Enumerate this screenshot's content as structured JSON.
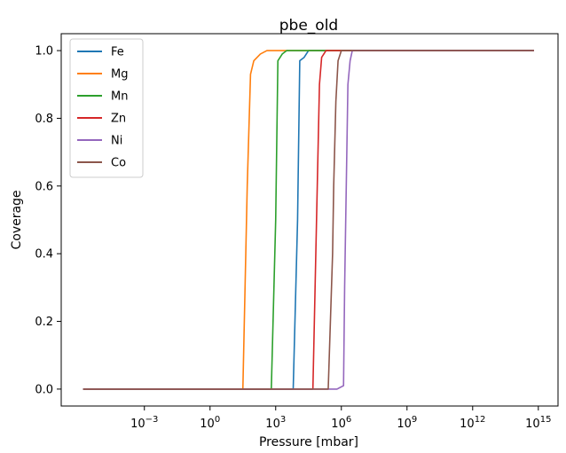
{
  "chart_data": {
    "type": "line",
    "title": "pbe_old",
    "xlabel": "Pressure [mbar]",
    "ylabel": "Coverage",
    "xscale": "log",
    "xlim_log10": [
      -6.8,
      15.9
    ],
    "ylim": [
      -0.05,
      1.05
    ],
    "x_ticks": [
      {
        "exp": -3,
        "base": "10",
        "sup": "−3"
      },
      {
        "exp": 0,
        "base": "10",
        "sup": "0"
      },
      {
        "exp": 3,
        "base": "10",
        "sup": "3"
      },
      {
        "exp": 6,
        "base": "10",
        "sup": "6"
      },
      {
        "exp": 9,
        "base": "10",
        "sup": "9"
      },
      {
        "exp": 12,
        "base": "10",
        "sup": "12"
      },
      {
        "exp": 15,
        "base": "10",
        "sup": "15"
      }
    ],
    "y_ticks": [
      {
        "value": 0.0,
        "label": "0.0"
      },
      {
        "value": 0.2,
        "label": "0.2"
      },
      {
        "value": 0.4,
        "label": "0.4"
      },
      {
        "value": 0.6,
        "label": "0.6"
      },
      {
        "value": 0.8,
        "label": "0.8"
      },
      {
        "value": 1.0,
        "label": "1.0"
      }
    ],
    "grid": false,
    "legend_position": "top-left",
    "series": [
      {
        "name": "Fe",
        "color": "#1f77b4",
        "points": [
          [
            -5.8,
            0
          ],
          [
            3.8,
            0
          ],
          [
            4.0,
            0.5
          ],
          [
            4.1,
            0.97
          ],
          [
            4.3,
            0.98
          ],
          [
            4.5,
            1.0
          ],
          [
            14.8,
            1.0
          ]
        ]
      },
      {
        "name": "Mg",
        "color": "#ff7f0e",
        "points": [
          [
            -5.8,
            0
          ],
          [
            1.5,
            0
          ],
          [
            1.7,
            0.6
          ],
          [
            1.85,
            0.93
          ],
          [
            2.0,
            0.97
          ],
          [
            2.3,
            0.99
          ],
          [
            2.6,
            1.0
          ],
          [
            14.8,
            1.0
          ]
        ]
      },
      {
        "name": "Mn",
        "color": "#2ca02c",
        "points": [
          [
            -5.8,
            0
          ],
          [
            2.8,
            0
          ],
          [
            3.0,
            0.5
          ],
          [
            3.1,
            0.97
          ],
          [
            3.3,
            0.99
          ],
          [
            3.5,
            1.0
          ],
          [
            14.8,
            1.0
          ]
        ]
      },
      {
        "name": "Zn",
        "color": "#d62728",
        "points": [
          [
            -5.8,
            0
          ],
          [
            4.7,
            0
          ],
          [
            4.8,
            0.3
          ],
          [
            4.9,
            0.6
          ],
          [
            5.0,
            0.9
          ],
          [
            5.1,
            0.98
          ],
          [
            5.3,
            1.0
          ],
          [
            14.8,
            1.0
          ]
        ]
      },
      {
        "name": "Ni",
        "color": "#9467bd",
        "points": [
          [
            -5.8,
            0
          ],
          [
            5.8,
            0
          ],
          [
            6.1,
            0.01
          ],
          [
            6.15,
            0.3
          ],
          [
            6.3,
            0.9
          ],
          [
            6.4,
            0.97
          ],
          [
            6.5,
            1.0
          ],
          [
            14.8,
            1.0
          ]
        ]
      },
      {
        "name": "Co",
        "color": "#8c564b",
        "points": [
          [
            -5.8,
            0
          ],
          [
            5.4,
            0
          ],
          [
            5.6,
            0.4
          ],
          [
            5.65,
            0.6
          ],
          [
            5.75,
            0.85
          ],
          [
            5.85,
            0.97
          ],
          [
            6.0,
            1.0
          ],
          [
            14.8,
            1.0
          ]
        ]
      }
    ]
  }
}
